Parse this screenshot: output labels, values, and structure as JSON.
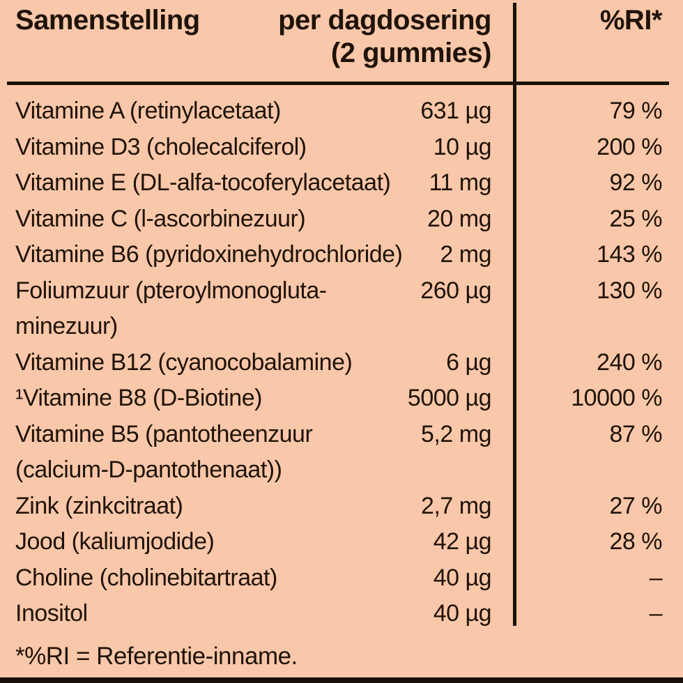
{
  "colors": {
    "background": "#f9c7a9",
    "text": "#1f1309",
    "line": "#17100a"
  },
  "table": {
    "header": {
      "composition": "Samenstelling",
      "dose": "per dagdosering\n(2 gummies)",
      "ri": "%RI*"
    },
    "rows": [
      {
        "name": "Vitamine A (retinylacetaat)",
        "amount": "631 µg",
        "ri": "79 %"
      },
      {
        "name": "Vitamine D3 (cholecalciferol)",
        "amount": "10 µg",
        "ri": "200 %"
      },
      {
        "name": "Vitamine E (DL-alfa-tocoferylacetaat)",
        "amount": "11 mg",
        "ri": "92 %"
      },
      {
        "name": "Vitamine C (l-ascorbinezuur)",
        "amount": "20 mg",
        "ri": "25 %"
      },
      {
        "name": "Vitamine B6 (pyridoxinehydrochloride)",
        "amount": "2 mg",
        "ri": "143 %"
      },
      {
        "name": "Foliumzuur (pteroylmonogluta-\nminezuur)",
        "amount": "260 µg",
        "ri": "130 %"
      },
      {
        "name": "Vitamine B12 (cyanocobalamine)",
        "amount": "6 µg",
        "ri": "240 %"
      },
      {
        "name": "¹Vitamine B8 (D-Biotine)",
        "amount": "5000 µg",
        "ri": "10000 %"
      },
      {
        "name": "Vitamine B5 (pantotheenzuur\n(calcium-D-pantothenaat))",
        "amount": "5,2 mg",
        "ri": "87 %"
      },
      {
        "name": "Zink (zinkcitraat)",
        "amount": "2,7 mg",
        "ri": "27 %"
      },
      {
        "name": "Jood (kaliumjodide)",
        "amount": "42 µg",
        "ri": "28 %"
      },
      {
        "name": "Choline (cholinebitartraat)",
        "amount": "40 µg",
        "ri": "–"
      },
      {
        "name": "Inositol",
        "amount": "40 µg",
        "ri": "–"
      }
    ],
    "footnote": "*%RI = Referentie-inname."
  }
}
